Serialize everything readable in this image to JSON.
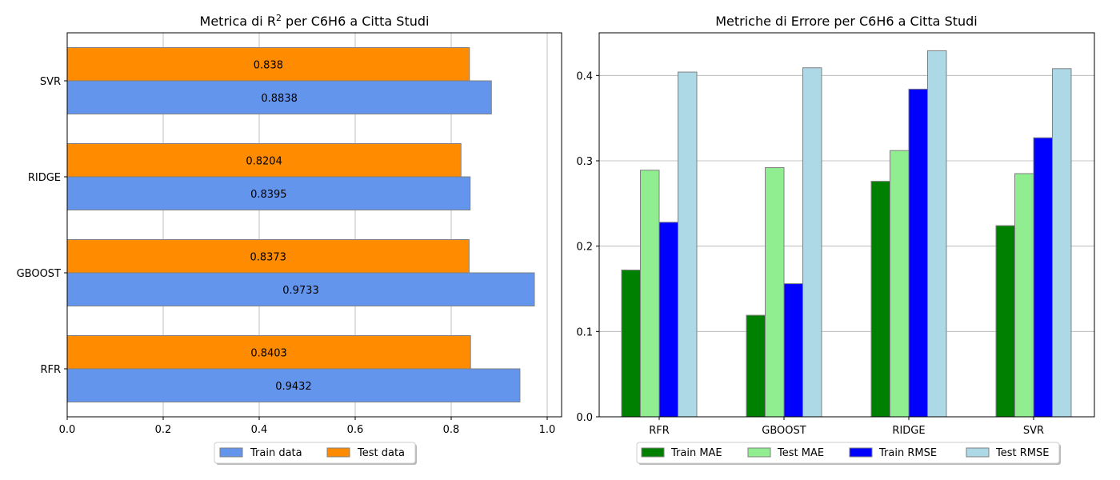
{
  "chart_data": [
    {
      "type": "bar",
      "orientation": "horizontal",
      "title_main": "Metrica di R",
      "title_sup": "2",
      "title_rest": " per C6H6 a Citta Studi",
      "categories": [
        "RFR",
        "GBOOST",
        "RIDGE",
        "SVR"
      ],
      "series": [
        {
          "name": "Train data",
          "values": [
            0.9432,
            0.9733,
            0.8395,
            0.8838
          ],
          "labels": [
            "0.9432",
            "0.9733",
            "0.8395",
            "0.8838"
          ],
          "color": "#6495ED"
        },
        {
          "name": "Test data",
          "values": [
            0.8403,
            0.8373,
            0.8204,
            0.838
          ],
          "labels": [
            "0.8403",
            "0.8373",
            "0.8204",
            "0.838"
          ],
          "color": "#FF8C00"
        }
      ],
      "xlim": [
        0,
        1.03
      ],
      "xticks": [
        "0.0",
        "0.2",
        "0.4",
        "0.6",
        "0.8",
        "1.0"
      ],
      "xtick_values": [
        0,
        0.2,
        0.4,
        0.6,
        0.8,
        1.0
      ],
      "grid": true,
      "legend": "bottom-center"
    },
    {
      "type": "bar",
      "orientation": "vertical",
      "title": "Metriche di Errore per C6H6 a Citta Studi",
      "categories": [
        "RFR",
        "GBOOST",
        "RIDGE",
        "SVR"
      ],
      "series": [
        {
          "name": "Train MAE",
          "values": [
            0.172,
            0.119,
            0.276,
            0.224
          ],
          "color": "#008000"
        },
        {
          "name": "Test MAE",
          "values": [
            0.289,
            0.292,
            0.312,
            0.285
          ],
          "color": "#90EE90"
        },
        {
          "name": "Train RMSE",
          "values": [
            0.228,
            0.156,
            0.384,
            0.327
          ],
          "color": "#0000FF"
        },
        {
          "name": "Test RMSE",
          "values": [
            0.404,
            0.409,
            0.429,
            0.408
          ],
          "color": "#ADD8E6"
        }
      ],
      "ylim": [
        0,
        0.45
      ],
      "yticks": [
        "0.0",
        "0.1",
        "0.2",
        "0.3",
        "0.4"
      ],
      "ytick_values": [
        0,
        0.1,
        0.2,
        0.3,
        0.4
      ],
      "grid": true,
      "legend": "bottom-center"
    }
  ]
}
